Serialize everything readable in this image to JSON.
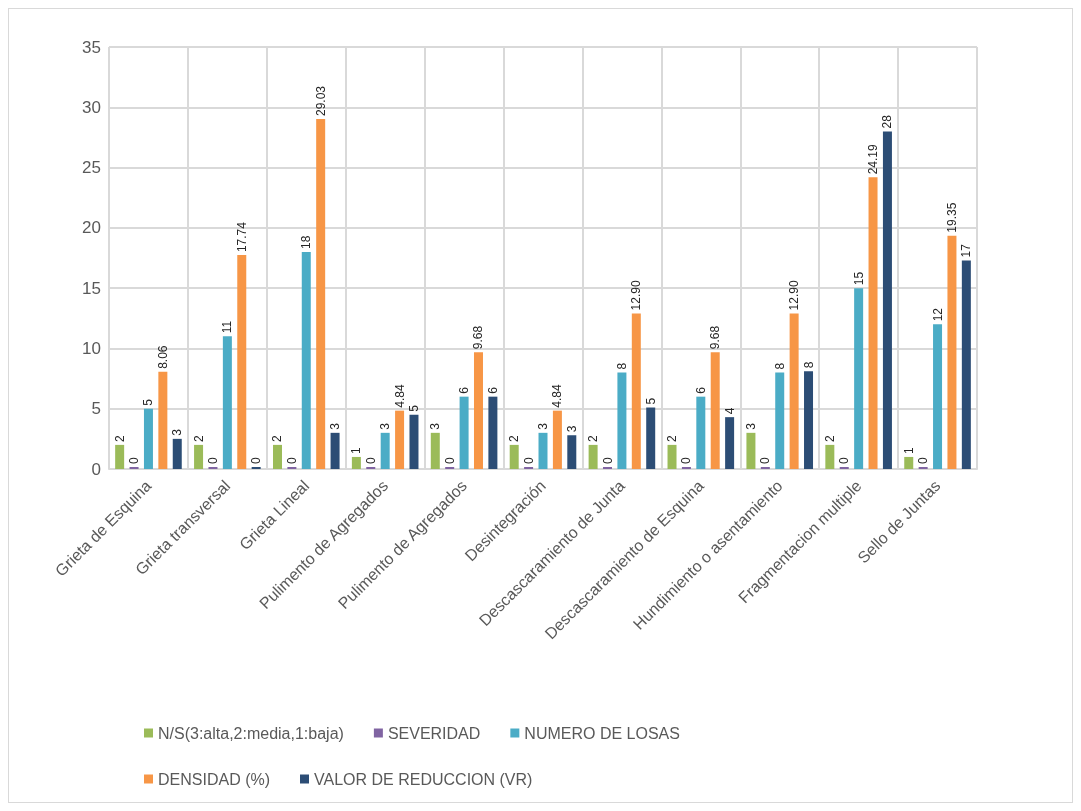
{
  "chart_data": {
    "type": "bar",
    "categories": [
      "Grieta de Esquina",
      "Grieta transversal",
      "Grieta Lineal",
      "Pulimento de Agregados",
      "Pulimento de Agregados",
      "Desintegración",
      "Descascaramiento de Junta",
      "Descascaramiento de Esquina",
      "Hundimiento o asentamiento",
      "Fragmentacion multiple",
      "Sello de Juntas"
    ],
    "series": [
      {
        "name": "N/S(3:alta,2:media,1:baja)",
        "color": "#9bbb59",
        "values": [
          2,
          2,
          2,
          1,
          3,
          2,
          2,
          2,
          3,
          2,
          1
        ],
        "value_labels": [
          "2",
          "2",
          "2",
          "1",
          "3",
          "2",
          "2",
          "2",
          "3",
          "2",
          "1"
        ]
      },
      {
        "name": "SEVERIDAD",
        "color": "#8064a2",
        "values": [
          0,
          0,
          0,
          0,
          0,
          0,
          0,
          0,
          0,
          0,
          0
        ],
        "value_labels": [
          "0",
          "0",
          "0",
          "0",
          "0",
          "0",
          "0",
          "0",
          "0",
          "0",
          "0"
        ]
      },
      {
        "name": "NUMERO DE LOSAS",
        "color": "#4bacc6",
        "values": [
          5,
          11,
          18,
          3,
          6,
          3,
          8,
          6,
          8,
          15,
          12
        ],
        "value_labels": [
          "5",
          "11",
          "18",
          "3",
          "6",
          "3",
          "8",
          "6",
          "8",
          "15",
          "12"
        ]
      },
      {
        "name": "DENSIDAD (%)",
        "color": "#f79646",
        "values": [
          8.06,
          17.74,
          29.03,
          4.84,
          9.68,
          4.84,
          12.9,
          9.68,
          12.9,
          24.19,
          19.35
        ],
        "value_labels": [
          "8.06",
          "17.74",
          "29.03",
          "4.84",
          "9.68",
          "4.84",
          "12.90",
          "9.68",
          "12.90",
          "24.19",
          "19.35"
        ]
      },
      {
        "name": "VALOR DE REDUCCION (VR)",
        "color": "#2c4d75",
        "values": [
          2.5,
          0,
          3,
          4.5,
          6,
          2.8,
          5.1,
          4.3,
          8.1,
          28,
          17.3
        ],
        "value_labels": [
          "3",
          "0",
          "3",
          "5",
          "6",
          "3",
          "5",
          "4",
          "8",
          "28",
          "17"
        ]
      }
    ],
    "ylim": [
      0,
      35
    ],
    "yticks": [
      0,
      5,
      10,
      15,
      20,
      25,
      30,
      35
    ],
    "grid": true,
    "legend": "bottom"
  }
}
